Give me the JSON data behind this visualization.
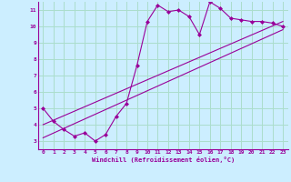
{
  "title": "",
  "xlabel": "Windchill (Refroidissement éolien,°C)",
  "ylabel": "",
  "bg_color": "#cceeff",
  "line_color": "#990099",
  "grid_color": "#aaddcc",
  "xlim": [
    -0.5,
    23.5
  ],
  "ylim": [
    2.5,
    11.5
  ],
  "xticks": [
    0,
    1,
    2,
    3,
    4,
    5,
    6,
    7,
    8,
    9,
    10,
    11,
    12,
    13,
    14,
    15,
    16,
    17,
    18,
    19,
    20,
    21,
    22,
    23
  ],
  "yticks": [
    3,
    4,
    5,
    6,
    7,
    8,
    9,
    10,
    11
  ],
  "data_line": {
    "x": [
      0,
      1,
      2,
      3,
      4,
      5,
      6,
      7,
      8,
      9,
      10,
      11,
      12,
      13,
      14,
      15,
      16,
      17,
      18,
      19,
      20,
      21,
      22,
      23
    ],
    "y": [
      5.0,
      4.2,
      3.7,
      3.3,
      3.5,
      3.0,
      3.4,
      4.5,
      5.3,
      7.6,
      10.3,
      11.3,
      10.9,
      11.0,
      10.6,
      9.5,
      11.5,
      11.1,
      10.5,
      10.4,
      10.3,
      10.3,
      10.2,
      10.0
    ]
  },
  "reg_line1": {
    "x": [
      0,
      23
    ],
    "y": [
      3.2,
      9.8
    ]
  },
  "reg_line2": {
    "x": [
      0,
      23
    ],
    "y": [
      4.0,
      10.3
    ]
  }
}
